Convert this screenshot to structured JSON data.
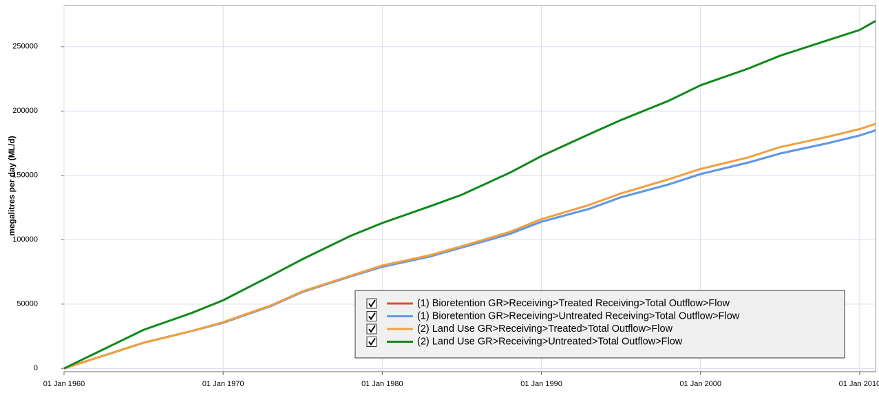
{
  "chart_data": {
    "type": "line",
    "y_label": "megalitres per day (ML/d)",
    "x": [
      "1960-01-01",
      "1962-01-01",
      "1965-01-01",
      "1968-01-01",
      "1970-01-01",
      "1973-01-01",
      "1975-01-01",
      "1978-01-01",
      "1980-01-01",
      "1983-01-01",
      "1985-01-01",
      "1988-01-01",
      "1990-01-01",
      "1993-01-01",
      "1995-01-01",
      "1998-01-01",
      "2000-01-01",
      "2003-01-01",
      "2005-01-01",
      "2008-01-01",
      "2010-01-01",
      "2011-01-01"
    ],
    "series": [
      {
        "name": "(1) Bioretention GR>Receiving>Treated Receiving>Total Outflow>Flow",
        "color": "#e0522a",
        "values": [
          0,
          8000,
          20000,
          29000,
          35500,
          48500,
          59500,
          71500,
          79000,
          87000,
          94000,
          104500,
          114000,
          124000,
          133000,
          143000,
          151000,
          160000,
          167000,
          175000,
          181000,
          185000
        ]
      },
      {
        "name": "(1) Bioretention GR>Receiving>Untreated Receiving>Total Outflow>Flow",
        "color": "#5b9bed",
        "values": [
          0,
          8000,
          20000,
          29000,
          35500,
          48500,
          59500,
          71500,
          79000,
          87000,
          94000,
          104500,
          114000,
          124000,
          133000,
          143000,
          151000,
          160000,
          167000,
          175000,
          181000,
          185000
        ]
      },
      {
        "name": "(2) Land Use GR>Receiving>Treated>Total Outflow>Flow",
        "color": "#f0a040",
        "values": [
          0,
          8000,
          20000,
          29000,
          36000,
          49000,
          60000,
          72000,
          80000,
          88000,
          95000,
          106000,
          116000,
          127000,
          136000,
          147000,
          155000,
          164000,
          172000,
          180000,
          186000,
          190000
        ]
      },
      {
        "name": "(2) Land Use GR>Receiving>Untreated>Total Outflow>Flow",
        "color": "#0f8a1a",
        "values": [
          0,
          12000,
          30000,
          43000,
          53000,
          72000,
          85000,
          103000,
          113000,
          126000,
          135000,
          152000,
          165000,
          182000,
          193000,
          208000,
          220000,
          233000,
          243000,
          255000,
          263000,
          270000
        ]
      }
    ],
    "xlim": [
      "1960-01-01",
      "2011-01-01"
    ],
    "xticks": [
      {
        "value": "1960-01-01",
        "label": "01 Jan 1960"
      },
      {
        "value": "1970-01-01",
        "label": "01 Jan 1970"
      },
      {
        "value": "1980-01-01",
        "label": "01 Jan 1980"
      },
      {
        "value": "1990-01-01",
        "label": "01 Jan 1990"
      },
      {
        "value": "2000-01-01",
        "label": "01 Jan 2000"
      },
      {
        "value": "2010-01-01",
        "label": "01 Jan 2010"
      }
    ],
    "ylim": [
      -2500,
      282000
    ],
    "yticks": [
      0,
      50000,
      100000,
      150000,
      200000,
      250000
    ],
    "grid": true,
    "legend": "bottom-right"
  }
}
